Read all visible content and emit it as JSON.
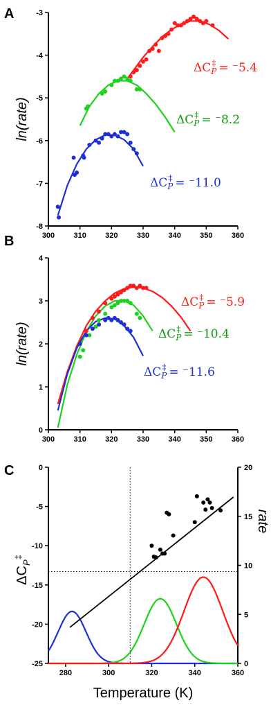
{
  "chart_data": [
    {
      "panel": "A",
      "type": "scatter",
      "ylabel": "ln(rate)",
      "xlim": [
        300,
        360
      ],
      "ylim": [
        -8,
        -3
      ],
      "xticks": [
        "300",
        "310",
        "320",
        "330",
        "340",
        "350",
        "360"
      ],
      "yticks": [
        "-8",
        "-7",
        "-6",
        "-5",
        "-4",
        "-3"
      ],
      "series": [
        {
          "color": "#ff1a1a",
          "annotation": "ΔC_P^‡ = ⁻5.4",
          "curve": {
            "x": [
              325,
              327,
              330,
              333,
              336,
              339,
              342,
              345,
              348,
              351,
              354,
              357
            ],
            "y": [
              -4.55,
              -4.35,
              -4.05,
              -3.8,
              -3.57,
              -3.4,
              -3.27,
              -3.2,
              -3.2,
              -3.28,
              -3.42,
              -3.62
            ]
          },
          "points": {
            "x": [
              326,
              327,
              328,
              329,
              330,
              331,
              332,
              333,
              334,
              335,
              336,
              337,
              338,
              339,
              340,
              341,
              342,
              343,
              344,
              345,
              346,
              347,
              348,
              349,
              350,
              352
            ],
            "y": [
              -4.5,
              -4.4,
              -4.35,
              -4.25,
              -4.15,
              -4.1,
              -3.9,
              -3.85,
              -3.75,
              -3.9,
              -3.6,
              -3.55,
              -3.5,
              -3.4,
              -3.25,
              -3.3,
              -3.3,
              -3.25,
              -3.2,
              -3.15,
              -3.1,
              -3.15,
              -3.2,
              -3.25,
              -3.2,
              -3.3
            ]
          }
        },
        {
          "color": "#1fd11f",
          "annotation": "ΔC_P^‡ = ⁻8.2",
          "curve": {
            "x": [
              310,
              313,
              316,
              319,
              322,
              325,
              328,
              331,
              334,
              337,
              340
            ],
            "y": [
              -5.65,
              -5.2,
              -4.9,
              -4.7,
              -4.6,
              -4.6,
              -4.7,
              -4.9,
              -5.15,
              -5.45,
              -5.8
            ]
          },
          "points": {
            "x": [
              312,
              312.5,
              317,
              318,
              320,
              321,
              322,
              323,
              324,
              325,
              326,
              328,
              329
            ],
            "y": [
              -5.25,
              -5.2,
              -4.9,
              -4.85,
              -4.7,
              -4.6,
              -4.6,
              -4.55,
              -4.5,
              -4.55,
              -4.6,
              -4.8,
              -4.8
            ]
          }
        },
        {
          "color": "#1f2fd6",
          "annotation": "ΔC_P^‡ = ⁻11.0",
          "curve": {
            "x": [
              303,
              306,
              309,
              312,
              315,
              318,
              321,
              324,
              327,
              330
            ],
            "y": [
              -7.75,
              -7.05,
              -6.55,
              -6.2,
              -5.98,
              -5.87,
              -5.87,
              -5.98,
              -6.2,
              -6.6
            ]
          },
          "points": {
            "x": [
              303,
              303.3,
              308,
              308.3,
              309,
              311,
              311.3,
              313,
              315,
              316,
              317,
              318,
              319,
              320,
              321,
              322,
              323,
              324,
              325,
              326,
              327,
              328
            ],
            "y": [
              -7.55,
              -7.8,
              -6.4,
              -6.8,
              -6.75,
              -6.35,
              -6.4,
              -6.1,
              -6.0,
              -6.05,
              -5.95,
              -5.85,
              -5.85,
              -5.9,
              -5.85,
              -5.9,
              -5.8,
              -5.8,
              -5.85,
              -6.05,
              -6.2,
              -6.3
            ]
          }
        }
      ]
    },
    {
      "panel": "B",
      "type": "scatter",
      "ylabel": "ln(rate)",
      "xlim": [
        300,
        360
      ],
      "ylim": [
        0,
        4
      ],
      "xticks": [
        "300",
        "310",
        "320",
        "330",
        "340",
        "350",
        "360"
      ],
      "yticks": [
        "0",
        "1",
        "2",
        "3",
        "4"
      ],
      "series": [
        {
          "color": "#ff1a1a",
          "annotation": "ΔC_P^‡ = ⁻5.9",
          "curve": {
            "x": [
              303,
              306,
              309,
              312,
              315,
              318,
              321,
              324,
              327,
              330,
              333,
              336,
              339,
              342,
              345
            ],
            "y": [
              0.6,
              1.35,
              1.95,
              2.42,
              2.76,
              3.0,
              3.18,
              3.28,
              3.32,
              3.3,
              3.22,
              3.08,
              2.88,
              2.62,
              2.3
            ]
          },
          "points": {
            "x": [
              310,
              312,
              314,
              316,
              318,
              320,
              321,
              322,
              323,
              324,
              325,
              326,
              327,
              328,
              329,
              330,
              331
            ],
            "y": [
              2.0,
              2.3,
              2.6,
              2.75,
              2.95,
              3.05,
              3.1,
              3.15,
              3.2,
              3.25,
              3.3,
              3.35,
              3.35,
              3.3,
              3.35,
              3.3,
              3.3
            ]
          }
        },
        {
          "color": "#1fd11f",
          "annotation": "ΔC_P^‡ = ⁻10.4",
          "curve": {
            "x": [
              303,
              306,
              309,
              312,
              315,
              318,
              321,
              324,
              327,
              330,
              333
            ],
            "y": [
              0.05,
              1.05,
              1.75,
              2.28,
              2.65,
              2.88,
              3.0,
              3.0,
              2.9,
              2.65,
              2.3
            ]
          },
          "points": {
            "x": [
              310,
              311,
              313,
              315,
              316,
              318,
              320,
              321,
              322,
              323,
              324,
              325,
              326,
              328,
              329
            ],
            "y": [
              1.7,
              1.85,
              2.2,
              2.4,
              2.55,
              2.7,
              2.85,
              2.9,
              2.95,
              3.0,
              3.0,
              3.0,
              2.95,
              2.7,
              2.6
            ]
          }
        },
        {
          "color": "#1f2fd6",
          "annotation": "ΔC_P^‡ = ⁻11.6",
          "curve": {
            "x": [
              303,
              306,
              309,
              312,
              315,
              318,
              321,
              324,
              327,
              330
            ],
            "y": [
              0.45,
              1.3,
              1.9,
              2.3,
              2.52,
              2.6,
              2.58,
              2.42,
              2.15,
              1.72
            ]
          },
          "points": {
            "x": [
              310,
              312,
              314,
              316,
              318,
              319,
              320,
              321,
              322,
              323,
              324,
              325,
              326
            ],
            "y": [
              2.0,
              2.2,
              2.35,
              2.45,
              2.55,
              2.6,
              2.55,
              2.6,
              2.55,
              2.5,
              2.45,
              2.35,
              2.3
            ]
          }
        }
      ]
    },
    {
      "panel": "C",
      "type": "scatter",
      "xlabel": "Temperature (K)",
      "ylabel_left": "ΔC_P^‡",
      "ylabel_right": "rate",
      "xlim": [
        272,
        360
      ],
      "ylim_left": [
        -25,
        0
      ],
      "ylim_right": [
        0,
        20
      ],
      "xticks": [
        "280",
        "300",
        "320",
        "340",
        "360"
      ],
      "yticks_left": [
        "-25",
        "-20",
        "-15",
        "-10",
        "-5",
        "0"
      ],
      "yticks_right": [
        "0",
        "5",
        "10",
        "15",
        "20"
      ],
      "points": {
        "x": [
          320,
          321,
          322,
          324,
          325,
          326,
          327,
          328,
          330,
          340,
          341,
          344,
          345,
          346,
          347,
          348,
          352
        ],
        "y": [
          -10.0,
          -11.4,
          -11.5,
          -10.5,
          -11.0,
          -11.0,
          -5.8,
          -6.0,
          -8.7,
          -7.0,
          -3.7,
          -4.5,
          -5.4,
          -4.1,
          -4.5,
          -5.2,
          -5.5
        ]
      },
      "fit_line": {
        "x": [
          282,
          358
        ],
        "y": [
          -20.4,
          -3.8
        ]
      },
      "dotted_guides": {
        "x": 310,
        "y": -13.3
      },
      "rate_curves": [
        {
          "color": "#1f2fd6",
          "center": 283,
          "sigma": 6.5,
          "peak": 5.3
        },
        {
          "color": "#1fd11f",
          "center": 324,
          "sigma": 7.5,
          "peak": 6.6
        },
        {
          "color": "#ff1a1a",
          "center": 344,
          "sigma": 9,
          "peak": 8.8
        }
      ]
    }
  ]
}
